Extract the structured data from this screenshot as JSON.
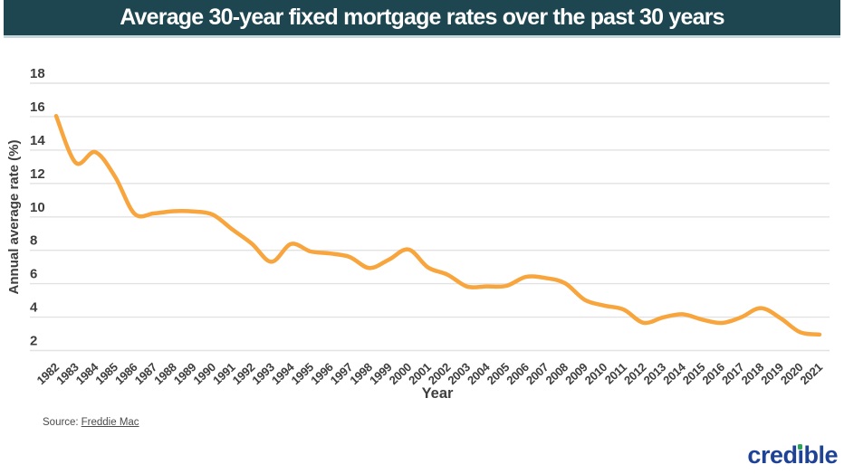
{
  "header": {
    "bg_color": "#1d4651",
    "accent_border": "#c7d5dc",
    "title_color": "#ffffff"
  },
  "chart_data": {
    "type": "line",
    "title": "Average 30-year fixed mortgage rates over the past 30 years",
    "xlabel": "Year",
    "ylabel": "Annual average rate (%)",
    "categories": [
      "1982",
      "1983",
      "1984",
      "1985",
      "1986",
      "1987",
      "1988",
      "1989",
      "1990",
      "1991",
      "1992",
      "1993",
      "1994",
      "1995",
      "1996",
      "1997",
      "1998",
      "1999",
      "2000",
      "2001",
      "2002",
      "2003",
      "2004",
      "2005",
      "2006",
      "2007",
      "2008",
      "2009",
      "2010",
      "2011",
      "2012",
      "2013",
      "2014",
      "2015",
      "2016",
      "2017",
      "2018",
      "2019",
      "2020",
      "2021"
    ],
    "values": [
      16.04,
      13.24,
      13.88,
      12.43,
      10.19,
      10.21,
      10.34,
      10.32,
      10.13,
      9.25,
      8.39,
      7.31,
      8.38,
      7.93,
      7.81,
      7.6,
      6.94,
      7.44,
      8.05,
      6.97,
      6.54,
      5.83,
      5.84,
      5.87,
      6.41,
      6.34,
      6.03,
      5.04,
      4.69,
      4.45,
      3.66,
      3.98,
      4.17,
      3.85,
      3.65,
      3.99,
      4.54,
      3.94,
      3.1,
      2.96
    ],
    "ylim": [
      2,
      18
    ],
    "yticks": [
      2,
      4,
      6,
      8,
      10,
      12,
      14,
      16,
      18
    ],
    "grid": true,
    "legend_position": "none",
    "smooth": true,
    "line_color": "#F7A53C",
    "gridline_color": "#e2e2e2",
    "tick_color": "#3e3e3e"
  },
  "footer": {
    "source_label": "Source:",
    "source_link": "Freddie Mac",
    "logo_text": "credible",
    "logo_color": "#1d4296",
    "logo_dot_color": "#2aa558"
  }
}
